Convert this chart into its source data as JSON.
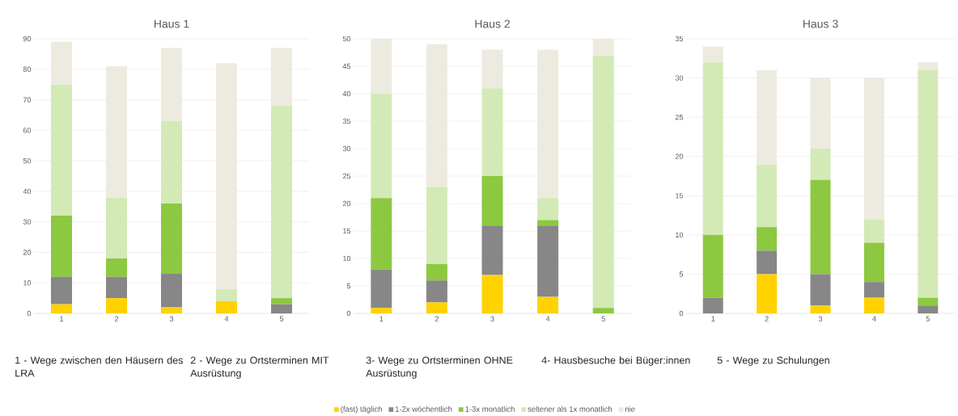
{
  "chart_data": [
    {
      "type": "bar",
      "title": "Haus 1",
      "categories": [
        "1",
        "2",
        "3",
        "4",
        "5"
      ],
      "stacked": true,
      "grid": "y",
      "legend": "bottom",
      "ylim": [
        0,
        90
      ],
      "yticks": [
        0,
        10,
        20,
        30,
        40,
        50,
        60,
        70,
        80,
        90
      ],
      "series": [
        {
          "name": "(fast) täglich",
          "color": "#ffd200",
          "values": [
            3,
            5,
            2,
            4,
            0
          ]
        },
        {
          "name": "1-2x wöchentlich",
          "color": "#878787",
          "values": [
            9,
            7,
            11,
            0,
            3
          ]
        },
        {
          "name": "1-3x monatlich",
          "color": "#8dc841",
          "values": [
            20,
            6,
            23,
            0,
            2
          ]
        },
        {
          "name": "seltener als 1x monatlich",
          "color": "#d3eab6",
          "values": [
            43,
            20,
            27,
            4,
            63
          ]
        },
        {
          "name": "nie",
          "color": "#edebe0",
          "values": [
            14,
            43,
            24,
            74,
            19
          ]
        }
      ]
    },
    {
      "type": "bar",
      "title": "Haus 2",
      "categories": [
        "1",
        "2",
        "3",
        "4",
        "5"
      ],
      "stacked": true,
      "grid": "y",
      "ylim": [
        0,
        50
      ],
      "yticks": [
        0,
        5,
        10,
        15,
        20,
        25,
        30,
        35,
        40,
        45,
        50
      ],
      "series": [
        {
          "color": "#ffd200",
          "values": [
            1,
            2,
            7,
            3,
            0
          ]
        },
        {
          "color": "#878787",
          "values": [
            7,
            4,
            9,
            13,
            0
          ]
        },
        {
          "color": "#8dc841",
          "values": [
            13,
            3,
            9,
            1,
            1
          ]
        },
        {
          "color": "#d3eab6",
          "values": [
            19,
            14,
            16,
            4,
            46
          ]
        },
        {
          "color": "#edebe0",
          "values": [
            10,
            26,
            7,
            27,
            3
          ]
        }
      ]
    },
    {
      "type": "bar",
      "title": "Haus 3",
      "categories": [
        "1",
        "2",
        "3",
        "4",
        "5"
      ],
      "stacked": true,
      "grid": "y",
      "ylim": [
        0,
        35
      ],
      "yticks": [
        0,
        5,
        10,
        15,
        20,
        25,
        30,
        35
      ],
      "series": [
        {
          "color": "#ffd200",
          "values": [
            0,
            5,
            1,
            2,
            0
          ]
        },
        {
          "color": "#878787",
          "values": [
            2,
            3,
            4,
            2,
            1
          ]
        },
        {
          "color": "#8dc841",
          "values": [
            8,
            3,
            12,
            5,
            1
          ]
        },
        {
          "color": "#d3eab6",
          "values": [
            22,
            8,
            4,
            3,
            29
          ]
        },
        {
          "color": "#edebe0",
          "values": [
            2,
            12,
            9,
            18,
            1
          ]
        }
      ]
    },
    {
      "type": "other",
      "annotations": [
        "1 - Wege zwischen den Häusern des LRA",
        "2 - Wege zu Ortsterminen MIT Ausrüstung",
        "3- Wege zu Ortsterminen OHNE Ausrüstung",
        "4- Hausbesuche bei Büger:innen",
        "5 - Wege zu Schulungen"
      ]
    }
  ]
}
